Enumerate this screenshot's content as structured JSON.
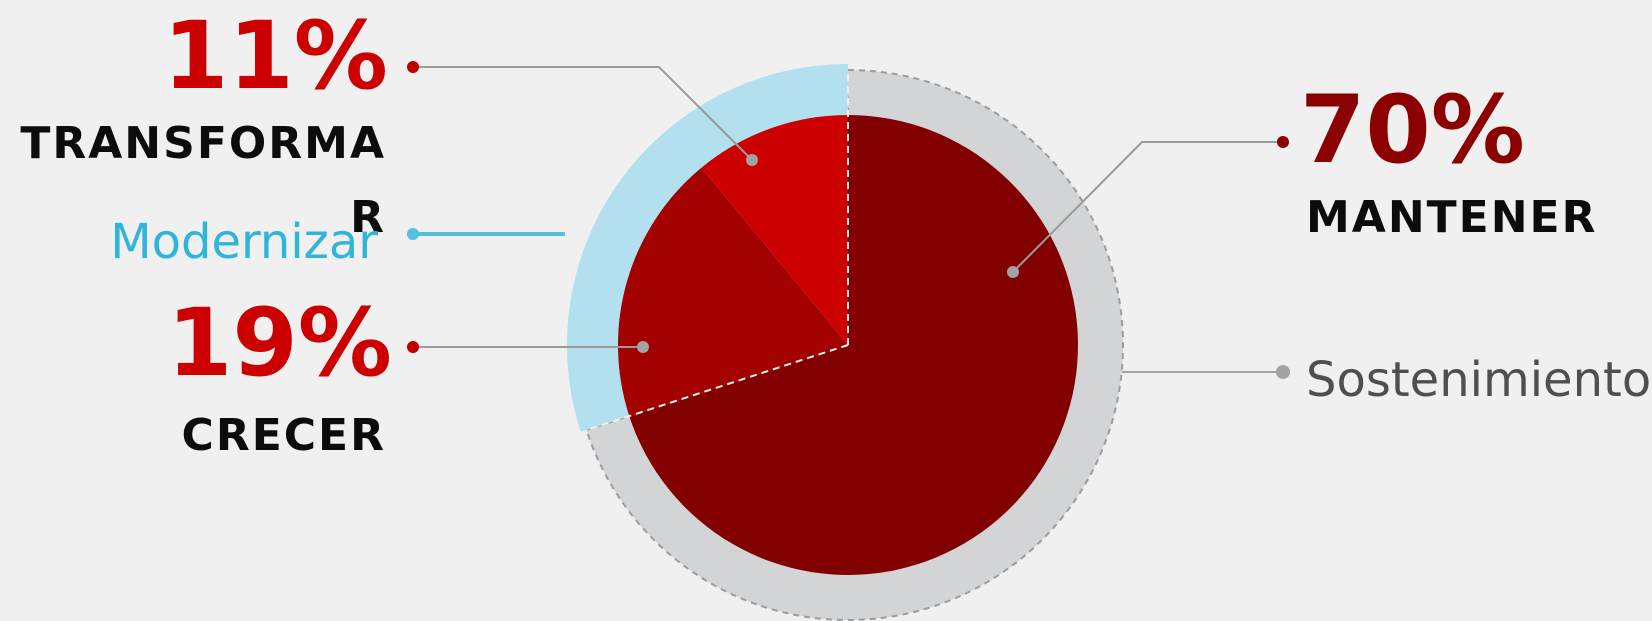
{
  "chart_data": {
    "type": "pie",
    "title": "",
    "slices": [
      {
        "label": "MANTENER",
        "value": 70,
        "display": "70%",
        "color": "#820000"
      },
      {
        "label": "CRECER",
        "value": 19,
        "display": "19%",
        "color": "#a30000"
      },
      {
        "label": "TRANSFORMAR",
        "display_wrapped": [
          "TRANSFORMA",
          "R"
        ],
        "value": 11,
        "display": "11%",
        "color": "#cc0000"
      }
    ],
    "groups": [
      {
        "label": "Sostenimiento",
        "covers": [
          "MANTENER"
        ],
        "value": 70,
        "color": "#d3d4d6"
      },
      {
        "label": "Modernizar",
        "covers": [
          "CRECER",
          "TRANSFORMAR"
        ],
        "value": 30,
        "color": "#b3e0ee"
      }
    ],
    "colors": {
      "percent_mantener": "#8b0000",
      "percent_other": "#cc0000",
      "category_text": "#0c0c0c",
      "modernizar_text": "#2fb4da",
      "sostenimiento_text": "#4f4f4f",
      "leader_line": "#9a9a9a",
      "leader_dot_red": "#c00000",
      "leader_dot_blue": "#55bfe0"
    }
  }
}
